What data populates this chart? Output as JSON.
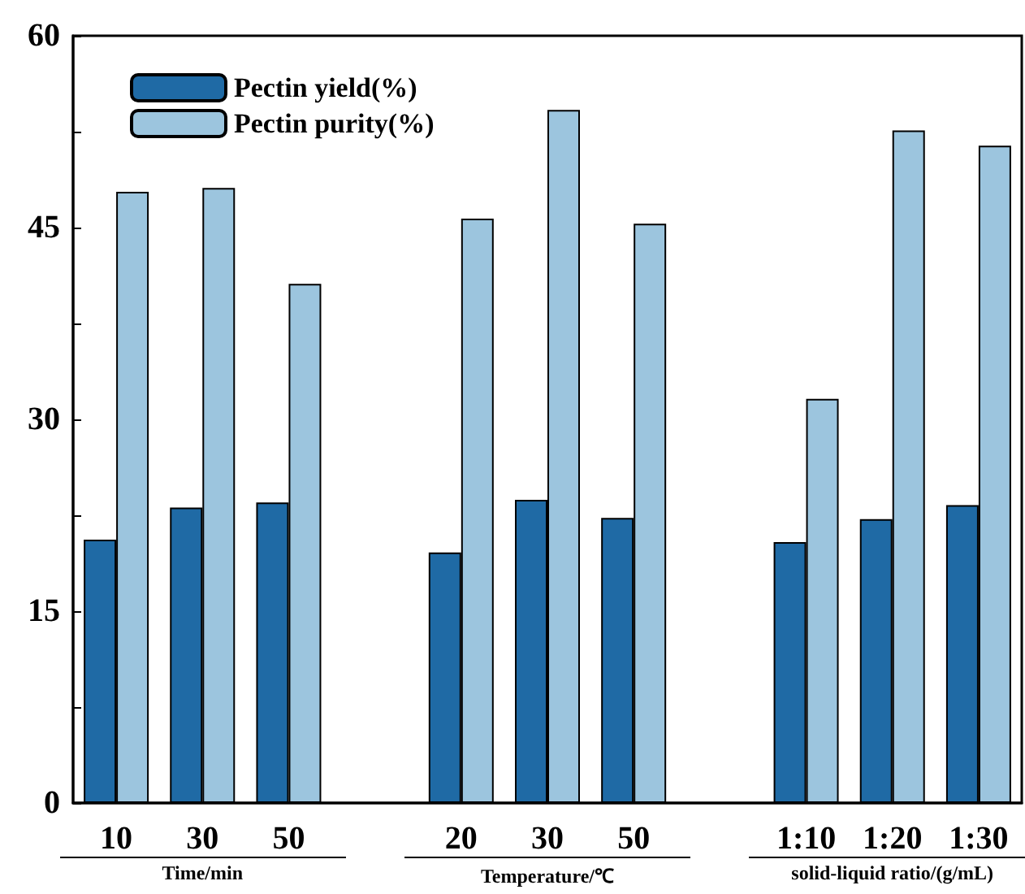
{
  "chart_data": {
    "type": "bar",
    "categories": [
      "10",
      "30",
      "50",
      null,
      "20",
      "30",
      "50",
      null,
      "1:10",
      "1:20",
      "1:30"
    ],
    "series": [
      {
        "name": "Pectin yield(%)",
        "color": "#1f6aa5",
        "values": [
          20.6,
          23.1,
          23.5,
          null,
          19.6,
          23.7,
          22.3,
          null,
          20.4,
          22.2,
          23.3
        ]
      },
      {
        "name": "Pectin purity(%)",
        "color": "#9cc5de",
        "values": [
          47.8,
          48.1,
          40.6,
          null,
          45.7,
          54.2,
          45.3,
          null,
          31.6,
          52.6,
          51.4
        ]
      }
    ],
    "ylim": [
      0,
      60
    ],
    "yticks": [
      0,
      {
        "value": 7.5,
        "label": null
      },
      15,
      {
        "value": 22.5,
        "label": null
      },
      30,
      {
        "value": 37.5,
        "label": null
      },
      45,
      {
        "value": 52.5,
        "label": null
      },
      60
    ],
    "annotations": [
      "Time/min",
      "Temperature/℃",
      "solid-liquid ratio/(g/mL)"
    ],
    "legend": "top left",
    "grid": false
  }
}
